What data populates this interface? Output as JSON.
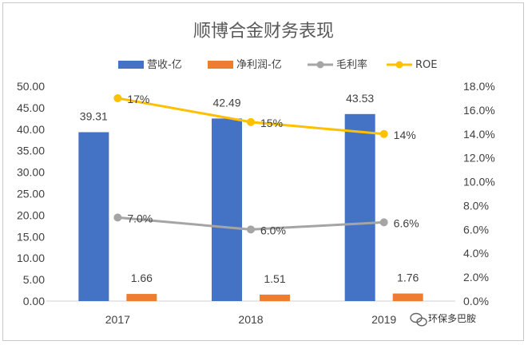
{
  "chart_data": {
    "type": "bar",
    "title": "顺博合金财务表现",
    "categories": [
      "2017",
      "2018",
      "2019"
    ],
    "series": [
      {
        "name": "营收-亿",
        "type": "bar",
        "axis": "left",
        "color": "#4472C4",
        "values": [
          39.31,
          42.49,
          43.53
        ],
        "labels": [
          "39.31",
          "42.49",
          "43.53"
        ]
      },
      {
        "name": "净利润-亿",
        "type": "bar",
        "axis": "left",
        "color": "#ED7D31",
        "values": [
          1.66,
          1.51,
          1.76
        ],
        "labels": [
          "1.66",
          "1.51",
          "1.76"
        ]
      },
      {
        "name": "毛利率",
        "type": "line",
        "axis": "right",
        "color": "#A5A5A5",
        "values": [
          0.07,
          0.06,
          0.066
        ],
        "labels": [
          "7.0%",
          "6.0%",
          "6.6%"
        ]
      },
      {
        "name": "ROE",
        "type": "line",
        "axis": "right",
        "color": "#FFC000",
        "values": [
          0.17,
          0.15,
          0.14
        ],
        "labels": [
          "17%",
          "15%",
          "14%"
        ]
      }
    ],
    "y_left": {
      "min": 0,
      "max": 50,
      "ticks": [
        "0.00",
        "5.00",
        "10.00",
        "15.00",
        "20.00",
        "25.00",
        "30.00",
        "35.00",
        "40.00",
        "45.00",
        "50.00"
      ]
    },
    "y_right": {
      "min": 0,
      "max": 0.18,
      "ticks": [
        "0.0%",
        "2.0%",
        "4.0%",
        "6.0%",
        "8.0%",
        "10.0%",
        "12.0%",
        "14.0%",
        "16.0%",
        "18.0%"
      ]
    },
    "grid": false,
    "legend": "top"
  },
  "watermark": {
    "text": "环保多巴胺",
    "icon": "wechat-icon"
  }
}
